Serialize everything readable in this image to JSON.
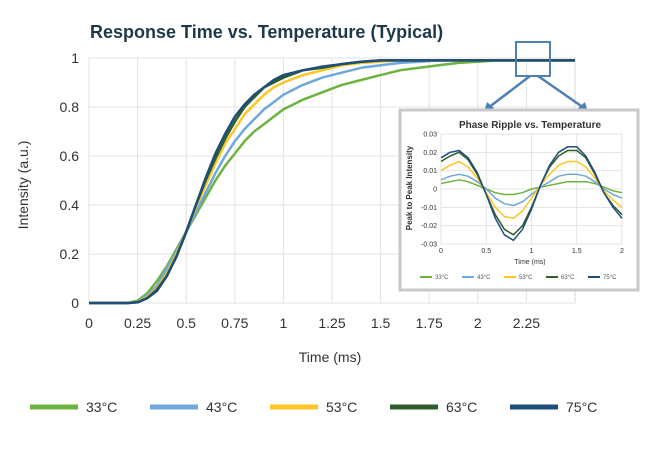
{
  "chart_data": [
    {
      "type": "line",
      "title": "Response Time vs. Temperature (Typical)",
      "xlabel": "Time (ms)",
      "ylabel": "Intensity (a.u.)",
      "xlim": [
        0,
        2.5
      ],
      "ylim": [
        0,
        1
      ],
      "xticks": [
        "0",
        "0.25",
        "0.5",
        "0.75",
        "1",
        "1.25",
        "1.5",
        "1.75",
        "2",
        "2.25"
      ],
      "yticks": [
        "0",
        "0.2",
        "0.4",
        "0.6",
        "0.8",
        "1"
      ],
      "grid": true,
      "legend": "bottom",
      "x": [
        0,
        0.1,
        0.2,
        0.25,
        0.3,
        0.35,
        0.4,
        0.45,
        0.5,
        0.55,
        0.6,
        0.65,
        0.7,
        0.75,
        0.8,
        0.85,
        0.9,
        0.95,
        1.0,
        1.1,
        1.2,
        1.3,
        1.4,
        1.5,
        1.6,
        1.7,
        1.8,
        1.9,
        2.0,
        2.1,
        2.2,
        2.35,
        2.5
      ],
      "series": [
        {
          "name": "33°C",
          "color": "#6DB33F",
          "values": [
            0.0,
            0.0,
            0.0,
            0.01,
            0.04,
            0.09,
            0.15,
            0.22,
            0.29,
            0.36,
            0.43,
            0.5,
            0.56,
            0.61,
            0.66,
            0.7,
            0.73,
            0.76,
            0.79,
            0.83,
            0.86,
            0.89,
            0.91,
            0.93,
            0.95,
            0.96,
            0.97,
            0.98,
            0.985,
            0.99,
            0.99,
            0.99,
            0.99
          ]
        },
        {
          "name": "43°C",
          "color": "#6FA8DC",
          "values": [
            0.0,
            0.0,
            0.0,
            0.005,
            0.03,
            0.07,
            0.14,
            0.21,
            0.29,
            0.37,
            0.45,
            0.53,
            0.6,
            0.66,
            0.71,
            0.75,
            0.79,
            0.82,
            0.85,
            0.89,
            0.92,
            0.94,
            0.96,
            0.97,
            0.98,
            0.985,
            0.99,
            0.99,
            0.99,
            0.99,
            0.99,
            0.99,
            0.99
          ]
        },
        {
          "name": "53°C",
          "color": "#FFC425",
          "values": [
            0.0,
            0.0,
            0.0,
            0.004,
            0.025,
            0.06,
            0.12,
            0.2,
            0.29,
            0.39,
            0.48,
            0.57,
            0.65,
            0.71,
            0.77,
            0.81,
            0.85,
            0.88,
            0.9,
            0.93,
            0.95,
            0.97,
            0.98,
            0.985,
            0.99,
            0.99,
            0.99,
            0.99,
            0.99,
            0.99,
            0.99,
            0.99,
            0.99
          ]
        },
        {
          "name": "63°C",
          "color": "#2E5E2B",
          "values": [
            0.0,
            0.0,
            0.0,
            0.003,
            0.02,
            0.055,
            0.11,
            0.19,
            0.29,
            0.4,
            0.5,
            0.59,
            0.67,
            0.74,
            0.8,
            0.84,
            0.88,
            0.9,
            0.92,
            0.95,
            0.96,
            0.975,
            0.985,
            0.99,
            0.99,
            0.99,
            0.99,
            0.99,
            0.99,
            0.99,
            0.99,
            0.99,
            0.99
          ]
        },
        {
          "name": "75°C",
          "color": "#1F4E79",
          "values": [
            0.0,
            0.0,
            0.0,
            0.003,
            0.02,
            0.05,
            0.11,
            0.19,
            0.29,
            0.4,
            0.51,
            0.61,
            0.69,
            0.76,
            0.81,
            0.85,
            0.88,
            0.91,
            0.93,
            0.95,
            0.965,
            0.975,
            0.985,
            0.99,
            0.99,
            0.99,
            0.99,
            0.99,
            0.99,
            0.99,
            0.99,
            0.99,
            0.99
          ]
        }
      ]
    },
    {
      "type": "line",
      "title": "Phase Ripple vs. Temperature",
      "xlabel": "Time (ms)",
      "ylabel": "Peak to Peak Intensity",
      "xlim": [
        0,
        2
      ],
      "ylim": [
        -0.03,
        0.03
      ],
      "xticks": [
        "0",
        "0.5",
        "1",
        "1.5",
        "2"
      ],
      "yticks": [
        "0.03",
        "0.02",
        "0.01",
        "0",
        "-0.01",
        "-0.02",
        "-0.03"
      ],
      "grid": true,
      "legend": "bottom",
      "x": [
        0,
        0.1,
        0.2,
        0.3,
        0.4,
        0.5,
        0.6,
        0.7,
        0.8,
        0.9,
        1.0,
        1.1,
        1.2,
        1.3,
        1.4,
        1.5,
        1.6,
        1.7,
        1.8,
        1.9,
        2.0
      ],
      "series": [
        {
          "name": "33°C",
          "color": "#6DB33F",
          "values": [
            0.003,
            0.004,
            0.005,
            0.004,
            0.002,
            0.0,
            -0.002,
            -0.003,
            -0.003,
            -0.002,
            0.0,
            0.001,
            0.002,
            0.003,
            0.004,
            0.004,
            0.004,
            0.003,
            0.001,
            -0.001,
            -0.002
          ]
        },
        {
          "name": "43°C",
          "color": "#6FA8DC",
          "values": [
            0.005,
            0.007,
            0.008,
            0.007,
            0.004,
            0.0,
            -0.005,
            -0.008,
            -0.009,
            -0.007,
            -0.003,
            0.001,
            0.004,
            0.007,
            0.008,
            0.008,
            0.007,
            0.004,
            0.0,
            -0.003,
            -0.005
          ]
        },
        {
          "name": "53°C",
          "color": "#FFC425",
          "values": [
            0.01,
            0.013,
            0.015,
            0.012,
            0.006,
            -0.002,
            -0.01,
            -0.015,
            -0.016,
            -0.012,
            -0.005,
            0.002,
            0.008,
            0.013,
            0.015,
            0.015,
            0.012,
            0.006,
            -0.001,
            -0.006,
            -0.01
          ]
        },
        {
          "name": "63°C",
          "color": "#2E5E2B",
          "values": [
            0.015,
            0.018,
            0.02,
            0.016,
            0.008,
            -0.003,
            -0.014,
            -0.022,
            -0.025,
            -0.02,
            -0.01,
            0.002,
            0.012,
            0.018,
            0.021,
            0.021,
            0.017,
            0.008,
            -0.002,
            -0.009,
            -0.014
          ]
        },
        {
          "name": "75°C",
          "color": "#1F4E79",
          "values": [
            0.017,
            0.02,
            0.021,
            0.017,
            0.009,
            -0.003,
            -0.016,
            -0.025,
            -0.028,
            -0.022,
            -0.011,
            0.002,
            0.013,
            0.02,
            0.023,
            0.023,
            0.018,
            0.009,
            -0.002,
            -0.01,
            -0.016
          ]
        }
      ]
    }
  ]
}
